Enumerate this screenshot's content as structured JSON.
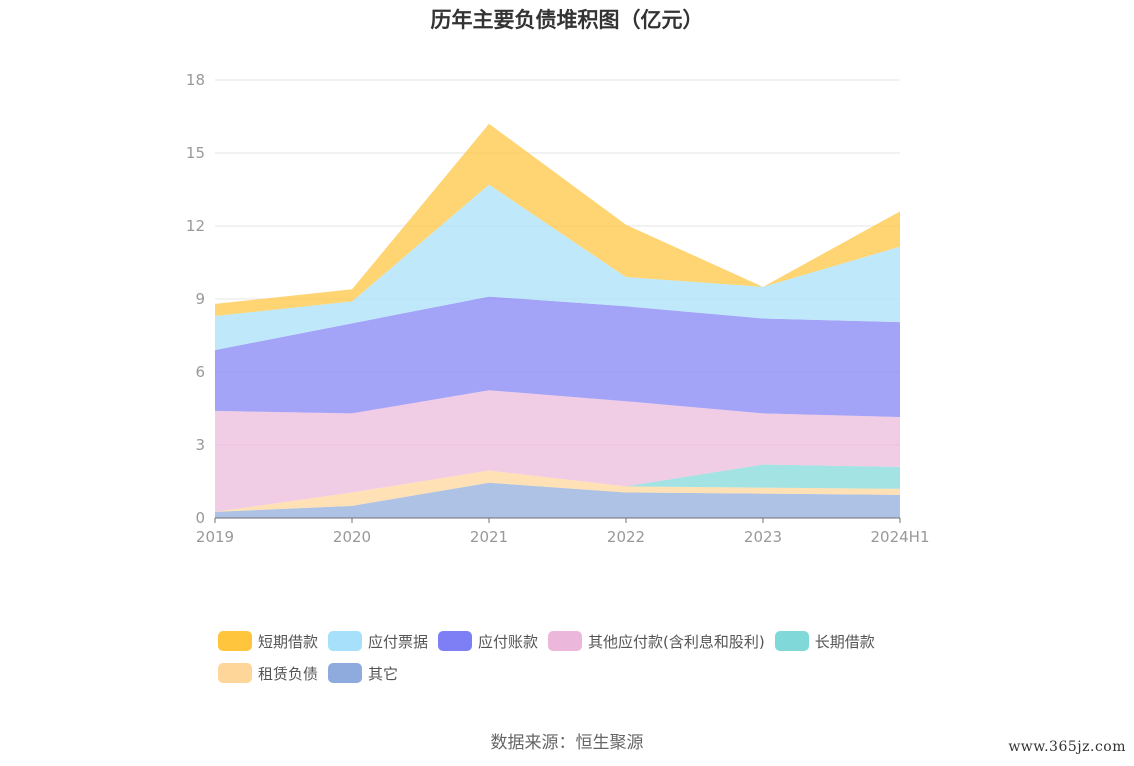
{
  "title": "历年主要负债堆积图（亿元）",
  "source_text": "数据来源：恒生聚源",
  "watermark": "www.365jz.com",
  "chart_data": {
    "type": "area",
    "stacked": true,
    "title": "历年主要负债堆积图（亿元）",
    "xlabel": "",
    "ylabel": "",
    "x": [
      "2019",
      "2020",
      "2021",
      "2022",
      "2023",
      "2024H1"
    ],
    "ylim": [
      0,
      18
    ],
    "yticks": [
      0,
      3,
      6,
      9,
      12,
      15,
      18
    ],
    "grid": true,
    "legend_position": "bottom",
    "series": [
      {
        "name": "其它",
        "color": "#8faadc",
        "values": [
          0.25,
          0.5,
          1.45,
          1.05,
          1.0,
          0.95
        ]
      },
      {
        "name": "租赁负债",
        "color": "#ffd699",
        "values": [
          0.0,
          0.55,
          0.5,
          0.25,
          0.25,
          0.25
        ]
      },
      {
        "name": "长期借款",
        "color": "#80d8d8",
        "values": [
          0.0,
          0.0,
          0.0,
          0.0,
          0.95,
          0.9
        ]
      },
      {
        "name": "其他应付款(含利息和股利)",
        "color": "#ebb8db",
        "values": [
          4.15,
          3.25,
          3.3,
          3.5,
          2.1,
          2.05
        ]
      },
      {
        "name": "应付账款",
        "color": "#7f7ff5",
        "values": [
          2.5,
          3.7,
          3.85,
          3.9,
          3.9,
          3.9
        ]
      },
      {
        "name": "应付票据",
        "color": "#a6e0fa",
        "values": [
          1.4,
          0.9,
          4.6,
          1.2,
          1.3,
          3.1
        ]
      },
      {
        "name": "短期借款",
        "color": "#ffc53d",
        "values": [
          0.5,
          0.5,
          2.5,
          2.15,
          0.0,
          1.45
        ]
      }
    ]
  },
  "legend": [
    {
      "name": "短期借款",
      "color": "#ffc53d"
    },
    {
      "name": "应付票据",
      "color": "#a6e0fa"
    },
    {
      "name": "应付账款",
      "color": "#7f7ff5"
    },
    {
      "name": "其他应付款(含利息和股利)",
      "color": "#ebb8db"
    },
    {
      "name": "长期借款",
      "color": "#80d8d8"
    },
    {
      "name": "租赁负债",
      "color": "#ffd699"
    },
    {
      "name": "其它",
      "color": "#8faadc"
    }
  ]
}
